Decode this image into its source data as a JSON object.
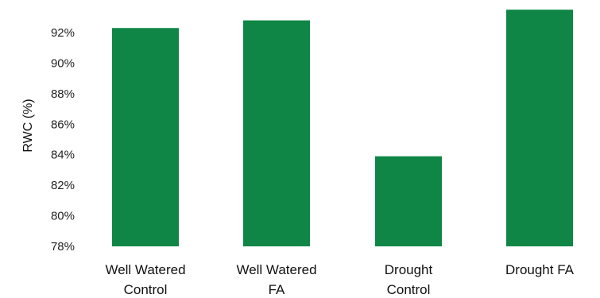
{
  "chart_data": {
    "type": "bar",
    "categories": [
      [
        "Well Watered",
        "Control"
      ],
      [
        "Well Watered",
        "FA"
      ],
      [
        "Drought",
        "Control"
      ],
      [
        "Drought FA"
      ]
    ],
    "values": [
      92.3,
      92.8,
      83.9,
      93.5
    ],
    "ylabel": "RWC (%)",
    "xlabel": "",
    "ylim": [
      78,
      93.5
    ],
    "yticks": [
      78,
      80,
      82,
      84,
      86,
      88,
      90,
      92
    ],
    "ytick_labels": [
      "78%",
      "80%",
      "82%",
      "84%",
      "86%",
      "88%",
      "90%",
      "92%"
    ],
    "bar_color": "#0f8646",
    "grid": false,
    "legend": "none"
  }
}
